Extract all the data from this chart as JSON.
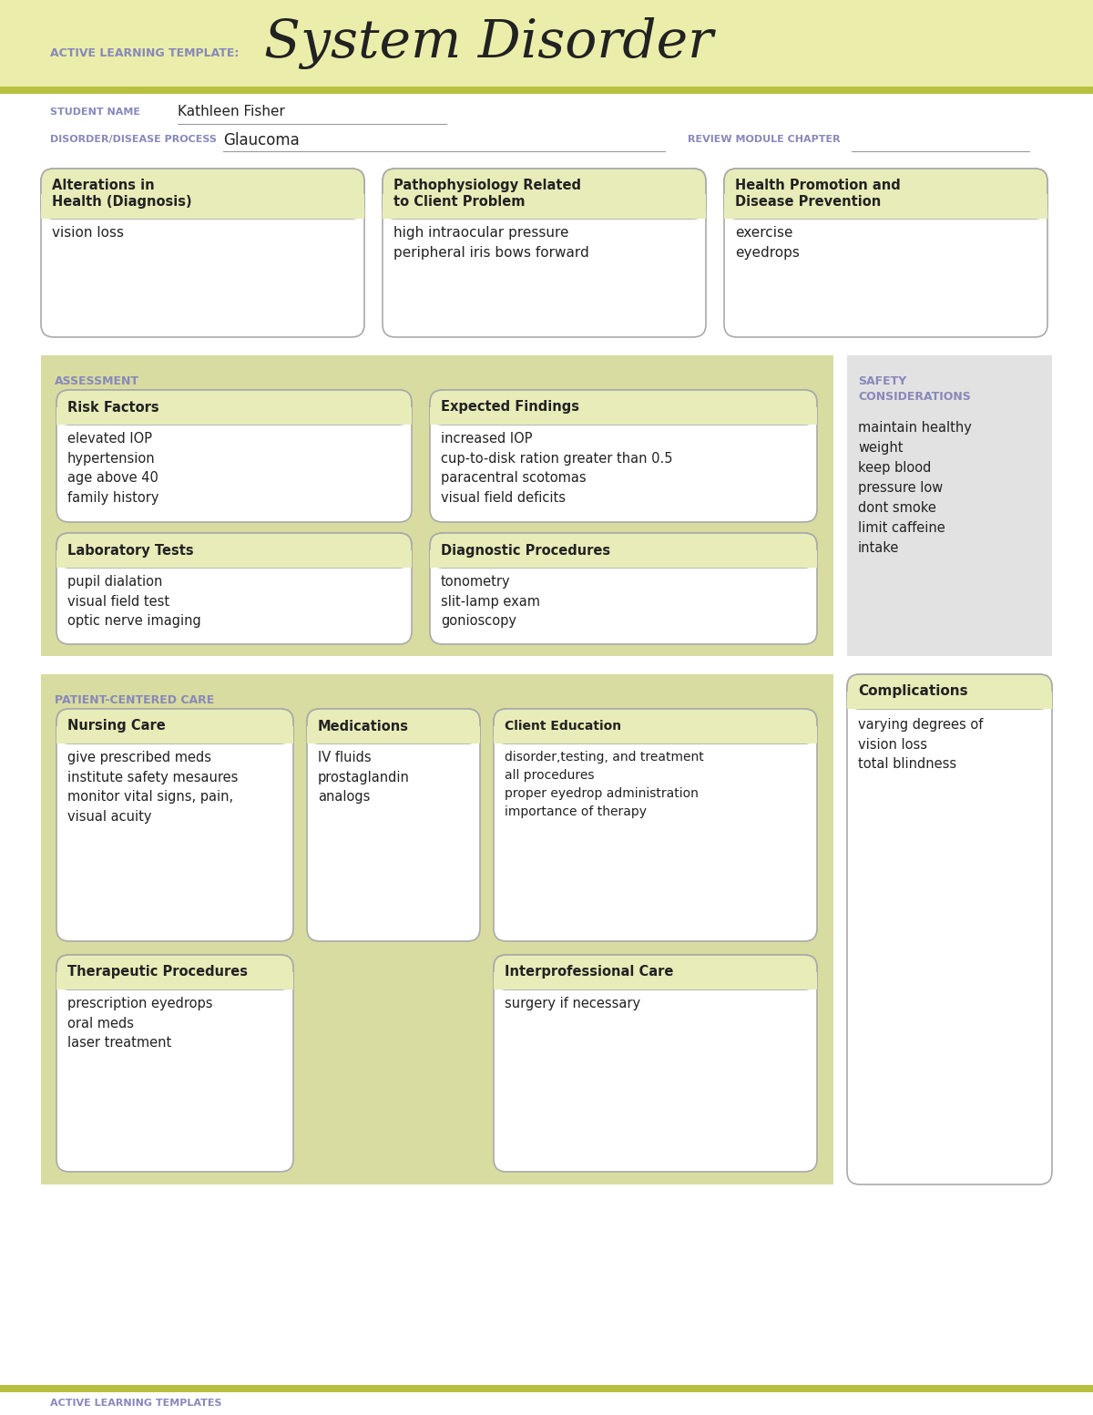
{
  "bg_header": "#eaeeaa",
  "bg_white": "#ffffff",
  "bg_section": "#d8dca0",
  "bg_box_header": "#e8ecb8",
  "bg_gray_sidebar": "#e2e2e2",
  "border_color": "#aaaaaa",
  "label_color": "#8888bb",
  "text_color": "#222222",
  "olive_line": "#b8c040",
  "header_title_label": "ACTIVE LEARNING TEMPLATE:",
  "header_title_main": "System Disorder",
  "student_label": "STUDENT NAME",
  "student_name": "Kathleen Fisher",
  "disorder_label": "DISORDER/DISEASE PROCESS",
  "disorder_name": "Glaucoma",
  "review_label": "REVIEW MODULE CHAPTER",
  "s1_title": "Alterations in\nHealth (Diagnosis)",
  "s1_body": "vision loss",
  "s2_title": "Pathophysiology Related\nto Client Problem",
  "s2_body": "high intraocular pressure\nperipheral iris bows forward",
  "s3_title": "Health Promotion and\nDisease Prevention",
  "s3_body": "exercise\neyedrops",
  "assess_label": "ASSESSMENT",
  "safety_label": "SAFETY\nCONSIDERATIONS",
  "safety_body": "maintain healthy\nweight\nkeep blood\npressure low\ndont smoke\nlimit caffeine\nintake",
  "risk_title": "Risk Factors",
  "risk_body": "elevated IOP\nhypertension\nage above 40\nfamily history",
  "expected_title": "Expected Findings",
  "expected_body": "increased IOP\ncup-to-disk ration greater than 0.5\nparacentral scotomas\nvisual field deficits",
  "lab_title": "Laboratory Tests",
  "lab_body": "pupil dialation\nvisual field test\noptic nerve imaging",
  "diag_title": "Diagnostic Procedures",
  "diag_body": "tonometry\nslit-lamp exam\ngonioscopy",
  "pcc_label": "PATIENT-CENTERED CARE",
  "comp_title": "Complications",
  "comp_body": "varying degrees of\nvision loss\ntotal blindness",
  "nursing_title": "Nursing Care",
  "nursing_body": "give prescribed meds\ninstitute safety mesaures\nmonitor vital signs, pain,\nvisual acuity",
  "med_title": "Medications",
  "med_body": "IV fluids\nprostaglandin\nanalogs",
  "client_title": "Client Education",
  "client_body": "disorder,testing, and treatment\nall procedures\nproper eyedrop administration\nimportance of therapy",
  "therapy_title": "Therapeutic Procedures",
  "therapy_body": "prescription eyedrops\noral meds\nlaser treatment",
  "interpro_title": "Interprofessional Care",
  "interpro_body": "surgery if necessary",
  "footer_text": "ACTIVE LEARNING TEMPLATES"
}
